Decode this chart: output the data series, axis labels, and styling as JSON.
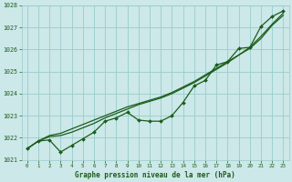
{
  "xlabel": "Graphe pression niveau de la mer (hPa)",
  "bg_color": "#cce8e8",
  "grid_color": "#99cccc",
  "line_color": "#1a5c1a",
  "x": [
    0,
    1,
    2,
    3,
    4,
    5,
    6,
    7,
    8,
    9,
    10,
    11,
    12,
    13,
    14,
    15,
    16,
    17,
    18,
    19,
    20,
    21,
    22,
    23
  ],
  "line_markers": [
    1021.5,
    1021.85,
    1021.9,
    1021.35,
    1021.65,
    1021.95,
    1022.25,
    1022.75,
    1022.9,
    1023.15,
    1022.8,
    1022.75,
    1022.75,
    1023.0,
    1023.6,
    1024.35,
    1024.6,
    1025.3,
    1025.45,
    1026.05,
    1026.1,
    1027.05,
    1027.5,
    1027.75
  ],
  "line_smooth1": [
    1021.5,
    1021.85,
    1022.1,
    1022.2,
    1022.4,
    1022.6,
    1022.8,
    1023.0,
    1023.2,
    1023.4,
    1023.55,
    1023.7,
    1023.85,
    1024.05,
    1024.3,
    1024.55,
    1024.85,
    1025.15,
    1025.45,
    1025.75,
    1026.05,
    1026.5,
    1027.1,
    1027.55
  ],
  "line_smooth2": [
    1021.5,
    1021.85,
    1022.05,
    1022.1,
    1022.25,
    1022.45,
    1022.65,
    1022.9,
    1023.1,
    1023.3,
    1023.5,
    1023.65,
    1023.8,
    1024.0,
    1024.25,
    1024.5,
    1024.8,
    1025.1,
    1025.4,
    1025.75,
    1026.1,
    1026.6,
    1027.15,
    1027.65
  ],
  "ylim": [
    1021.0,
    1028.0
  ],
  "xlim": [
    -0.5,
    23.5
  ],
  "yticks": [
    1021,
    1022,
    1023,
    1024,
    1025,
    1026,
    1027,
    1028
  ],
  "xticks": [
    0,
    1,
    2,
    3,
    4,
    5,
    6,
    7,
    8,
    9,
    10,
    11,
    12,
    13,
    14,
    15,
    16,
    17,
    18,
    19,
    20,
    21,
    22,
    23
  ]
}
